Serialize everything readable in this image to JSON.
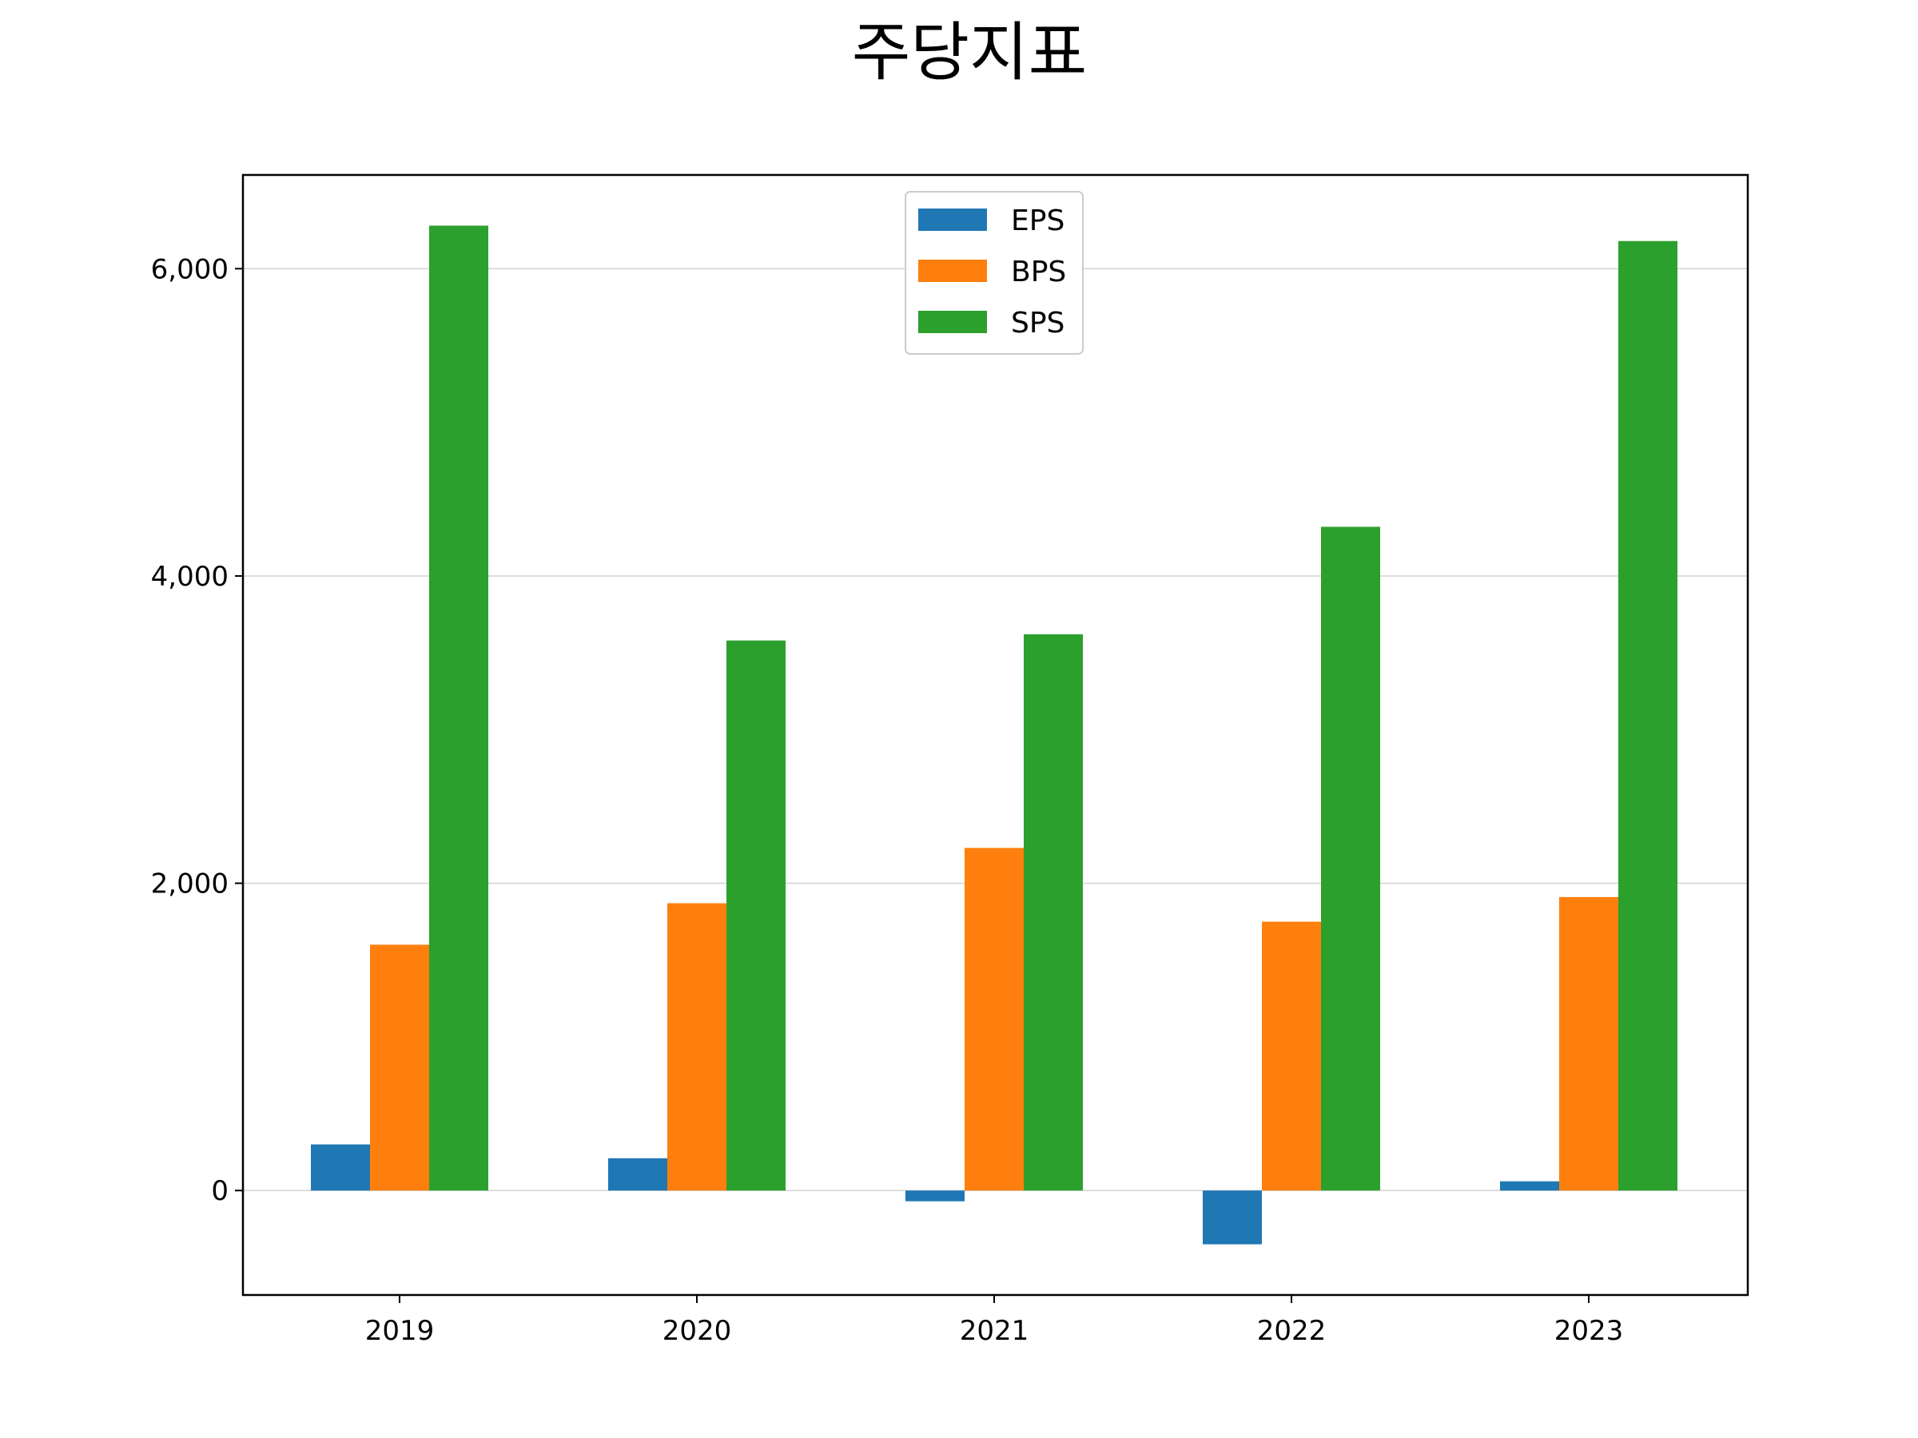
{
  "chart_data": {
    "type": "bar",
    "title": "주당지표",
    "xlabel": "",
    "ylabel": "",
    "categories": [
      "2019",
      "2020",
      "2021",
      "2022",
      "2023"
    ],
    "series": [
      {
        "name": "EPS",
        "color": "#1f77b4",
        "values": [
          300,
          210,
          -70,
          -350,
          60
        ]
      },
      {
        "name": "BPS",
        "color": "#ff7f0e",
        "values": [
          1600,
          1870,
          2230,
          1750,
          1910
        ]
      },
      {
        "name": "SPS",
        "color": "#2ca02c",
        "values": [
          6280,
          3580,
          3620,
          4320,
          6180
        ]
      }
    ],
    "yticks": [
      0,
      2000,
      4000,
      6000
    ],
    "ytick_labels": [
      "0",
      "2,000",
      "4,000",
      "6,000"
    ],
    "ylim": [
      -680,
      6610
    ],
    "grid": "y",
    "legend_position": "top-center"
  }
}
